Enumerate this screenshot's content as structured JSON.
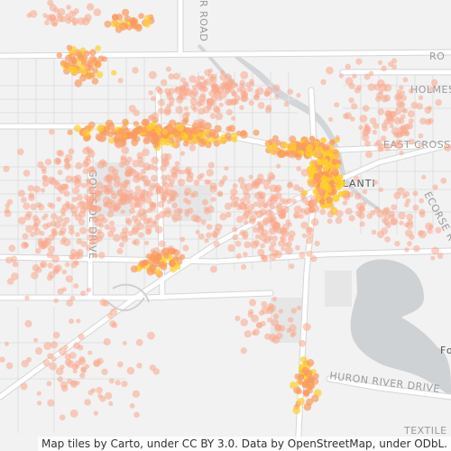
{
  "map": {
    "attribution": "Map tiles by Carto, under CC BY 3.0. Data by OpenStreetMap, under ODbL.",
    "labels": {
      "city": "YPSILANTI",
      "holmes": "HOLMES RO",
      "east_cross": "EAST CROSS ST",
      "golfside": "GOLFSIDE DRIVE",
      "ecorse": "ECORSE R",
      "huron": "HURON RIVER DRIVE",
      "textile": "TEXTILE RO",
      "river_road_top": "R ROAD",
      "lake_fo": "Fo",
      "road_top_left": "RO"
    },
    "colors": {
      "background": "#f2f2f2",
      "road": "#ffffff",
      "road_casing": "#dcdcdc",
      "water": "#cfd2d4",
      "park": "#e4e4e4",
      "point_light": "#f9a88c",
      "point_mid": "#fb9a5e",
      "point_hot": "#ffcf2c"
    }
  }
}
